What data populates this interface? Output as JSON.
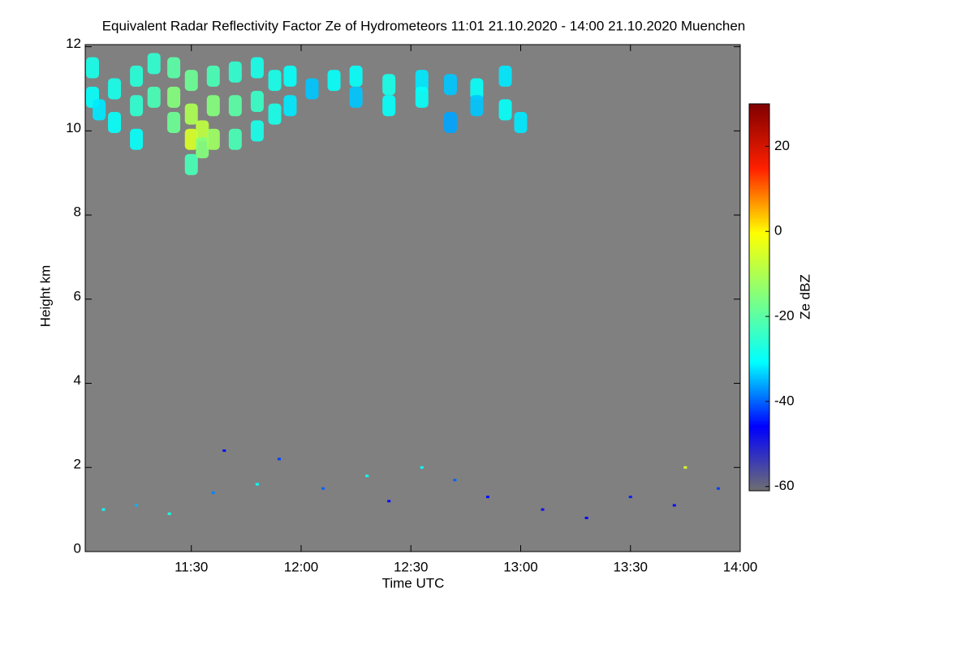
{
  "chart_data": {
    "type": "heatmap",
    "title": "Equivalent Radar Reflectivity Factor Ze of Hydrometeors   11:01 21.10.2020 - 14:00 21.10.2020 Muenchen",
    "x_label": "Time UTC",
    "y_label": "Height km",
    "colorbar_label": "Ze dBZ",
    "background_color": "#808080",
    "colorscale": [
      "#707070",
      "#0000ff",
      "#00ffff",
      "#80ff80",
      "#ffff00",
      "#ff2000",
      "#800000"
    ],
    "xlim": [
      11.0167,
      14.0
    ],
    "xticks": [
      {
        "value": 11.5,
        "label": "11:30"
      },
      {
        "value": 12.0,
        "label": "12:00"
      },
      {
        "value": 12.5,
        "label": "12:30"
      },
      {
        "value": 13.0,
        "label": "13:00"
      },
      {
        "value": 13.5,
        "label": "13:30"
      },
      {
        "value": 14.0,
        "label": "14:00"
      }
    ],
    "ylim": [
      0,
      12.05
    ],
    "yticks": [
      0,
      2,
      4,
      6,
      8,
      10,
      12
    ],
    "zlim": [
      -61,
      30
    ],
    "zticks": [
      -60,
      -40,
      -20,
      0,
      20
    ],
    "x": [
      11.05,
      11.05,
      11.08,
      11.15,
      11.15,
      11.25,
      11.25,
      11.25,
      11.33,
      11.33,
      11.42,
      11.42,
      11.42,
      11.5,
      11.5,
      11.5,
      11.5,
      11.55,
      11.55,
      11.6,
      11.6,
      11.6,
      11.7,
      11.7,
      11.7,
      11.8,
      11.8,
      11.8,
      11.88,
      11.88,
      11.95,
      11.95,
      12.05,
      12.15,
      12.25,
      12.25,
      12.4,
      12.4,
      12.55,
      12.55,
      12.68,
      12.68,
      12.8,
      12.8,
      12.93,
      12.93,
      13.0,
      11.1,
      11.25,
      11.4,
      11.6,
      11.8,
      11.9,
      12.1,
      12.3,
      12.4,
      12.55,
      12.7,
      12.85,
      13.1,
      13.3,
      13.5,
      13.7,
      13.9,
      11.65,
      13.75
    ],
    "y": [
      11.5,
      10.8,
      10.5,
      11.0,
      10.2,
      11.3,
      10.6,
      9.8,
      11.6,
      10.8,
      11.5,
      10.8,
      10.2,
      11.2,
      10.4,
      9.8,
      9.2,
      10.0,
      9.6,
      11.3,
      10.6,
      9.8,
      11.4,
      10.6,
      9.8,
      11.5,
      10.7,
      10.0,
      11.2,
      10.4,
      11.3,
      10.6,
      11.0,
      11.2,
      11.3,
      10.8,
      11.1,
      10.6,
      11.2,
      10.8,
      11.1,
      10.2,
      11.0,
      10.6,
      11.3,
      10.5,
      10.2,
      1.0,
      1.1,
      0.9,
      1.4,
      1.6,
      2.2,
      1.5,
      1.8,
      1.2,
      2.0,
      1.7,
      1.3,
      1.0,
      0.8,
      1.3,
      1.1,
      1.5,
      2.4,
      2.0
    ],
    "values": [
      -28,
      -30,
      -32,
      -28,
      -30,
      -26,
      -25,
      -30,
      -25,
      -22,
      -20,
      -15,
      -18,
      -18,
      -10,
      -5,
      -22,
      -8,
      -15,
      -22,
      -15,
      -12,
      -25,
      -20,
      -22,
      -28,
      -24,
      -28,
      -28,
      -28,
      -30,
      -32,
      -34,
      -30,
      -30,
      -34,
      -28,
      -30,
      -32,
      -30,
      -34,
      -36,
      -30,
      -34,
      -32,
      -30,
      -32,
      -30,
      -35,
      -28,
      -38,
      -30,
      -42,
      -40,
      -30,
      -45,
      -30,
      -40,
      -45,
      -48,
      -46,
      -44,
      -45,
      -42,
      -45,
      -5
    ]
  }
}
